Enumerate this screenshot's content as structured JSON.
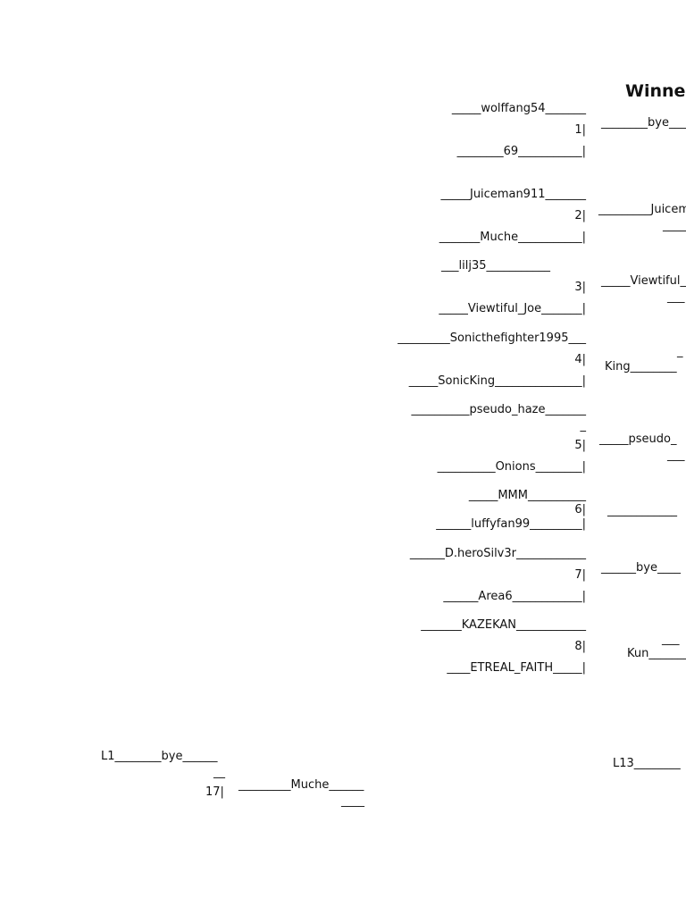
{
  "header": {
    "title": "Winne"
  },
  "round1": {
    "m1": {
      "top": "_____wolffang54_______",
      "num": "1|",
      "bottom": "________69___________|"
    },
    "m2": {
      "top": "_____Juiceman911_______",
      "num": "2|",
      "bottom": "_______Muche___________|"
    },
    "m3": {
      "top": "___lilj35___________",
      "num": "3|",
      "bottom": "_____Viewtiful_Joe_______|"
    },
    "m4": {
      "top": "_________Sonicthefighter1995___",
      "num": "4|",
      "bottom": "_____SonicKing_______________|"
    },
    "m5": {
      "top": "__________pseudo_haze_______",
      "top_cont": "_",
      "num": "5|",
      "bottom": "__________Onions________|"
    },
    "m6": {
      "top": "_____MMM__________",
      "num": "6|",
      "bottom": "______luffyfan99_________|"
    },
    "m7": {
      "top": "______D.heroSilv3r____________",
      "num": "7|",
      "bottom": "______Area6____________|"
    },
    "m8": {
      "top": "_______KAZEKAN____________",
      "num": "8|",
      "bottom": "____ETREAL_FAITH_____|"
    }
  },
  "round2": {
    "r1": "________bye___",
    "r2a": "_________Juicem",
    "r2b": "____",
    "r3a": "_____Viewtiful_",
    "r3b": "___",
    "r4a": "_",
    "r4b": "King________",
    "r5a": "_____pseudo_",
    "r5b": "___",
    "r6": "____________",
    "r7": "______bye____",
    "r8a": "___",
    "r8b": "Kun_______"
  },
  "losers": {
    "top": "L1________bye______",
    "top_cont": "__",
    "num": "17|",
    "result": "_________Muche______",
    "result_cont": "____",
    "l13": "L13________"
  }
}
